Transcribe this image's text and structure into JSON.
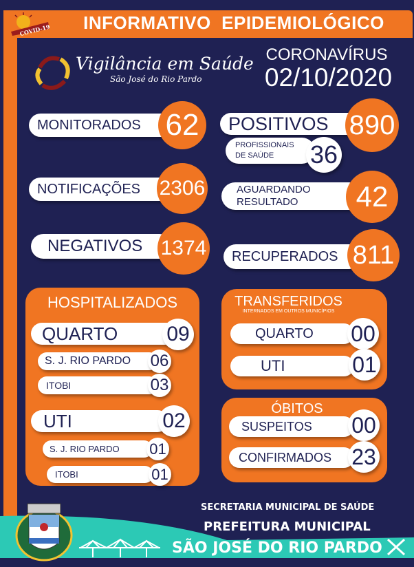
{
  "header": {
    "title": "INFORMATIVO  EPIDEMIOLÓGICO",
    "badge": "COVID-19"
  },
  "brand": {
    "name": "Vigilância em Saúde",
    "city": "São José do Rio Pardo"
  },
  "topic": "CORONAVÍRUS",
  "date": "02/10/2020",
  "stats": {
    "monitorados": {
      "label": "MONITORADOS",
      "value": "62"
    },
    "positivos": {
      "label": "POSITIVOS",
      "value": "890"
    },
    "profissionais": {
      "label1": "PROFISSIONAIS",
      "label2": "DE SAÚDE",
      "value": "36"
    },
    "notificacoes": {
      "label": "NOTIFICAÇÕES",
      "value": "2306"
    },
    "aguardando": {
      "label1": "AGUARDANDO",
      "label2": "RESULTADO",
      "value": "42"
    },
    "negativos": {
      "label": "NEGATIVOS",
      "value": "1374"
    },
    "recuperados": {
      "label": "RECUPERADOS",
      "value": "811"
    }
  },
  "hospitalizados": {
    "title": "HOSPITALIZADOS",
    "quarto": {
      "label": "QUARTO",
      "value": "09",
      "sjrp": {
        "label": "S. J. RIO PARDO",
        "value": "06"
      },
      "itobi": {
        "label": "ITOBI",
        "value": "03"
      }
    },
    "uti": {
      "label": "UTI",
      "value": "02",
      "sjrp": {
        "label": "S. J. RIO PARDO",
        "value": "01"
      },
      "itobi": {
        "label": "ITOBI",
        "value": "01"
      }
    }
  },
  "transferidos": {
    "title": "TRANSFERIDOS",
    "subtitle": "INTERNADOS EM OUTROS MUNICÍPIOS",
    "quarto": {
      "label": "QUARTO",
      "value": "00"
    },
    "uti": {
      "label": "UTI",
      "value": "01"
    }
  },
  "obitos": {
    "title": "ÓBITOS",
    "suspeitos": {
      "label": "SUSPEITOS",
      "value": "00"
    },
    "confirmados": {
      "label": "CONFIRMADOS",
      "value": "23"
    }
  },
  "footer": {
    "line1": "SECRETARIA MUNICIPAL DE SAÚDE",
    "line2": "PREFEITURA MUNICIPAL",
    "line3": "SÃO JOSÉ DO RIO PARDO"
  },
  "colors": {
    "background": "#1f2153",
    "accent": "#f07522",
    "teal": "#2cc9b5"
  }
}
